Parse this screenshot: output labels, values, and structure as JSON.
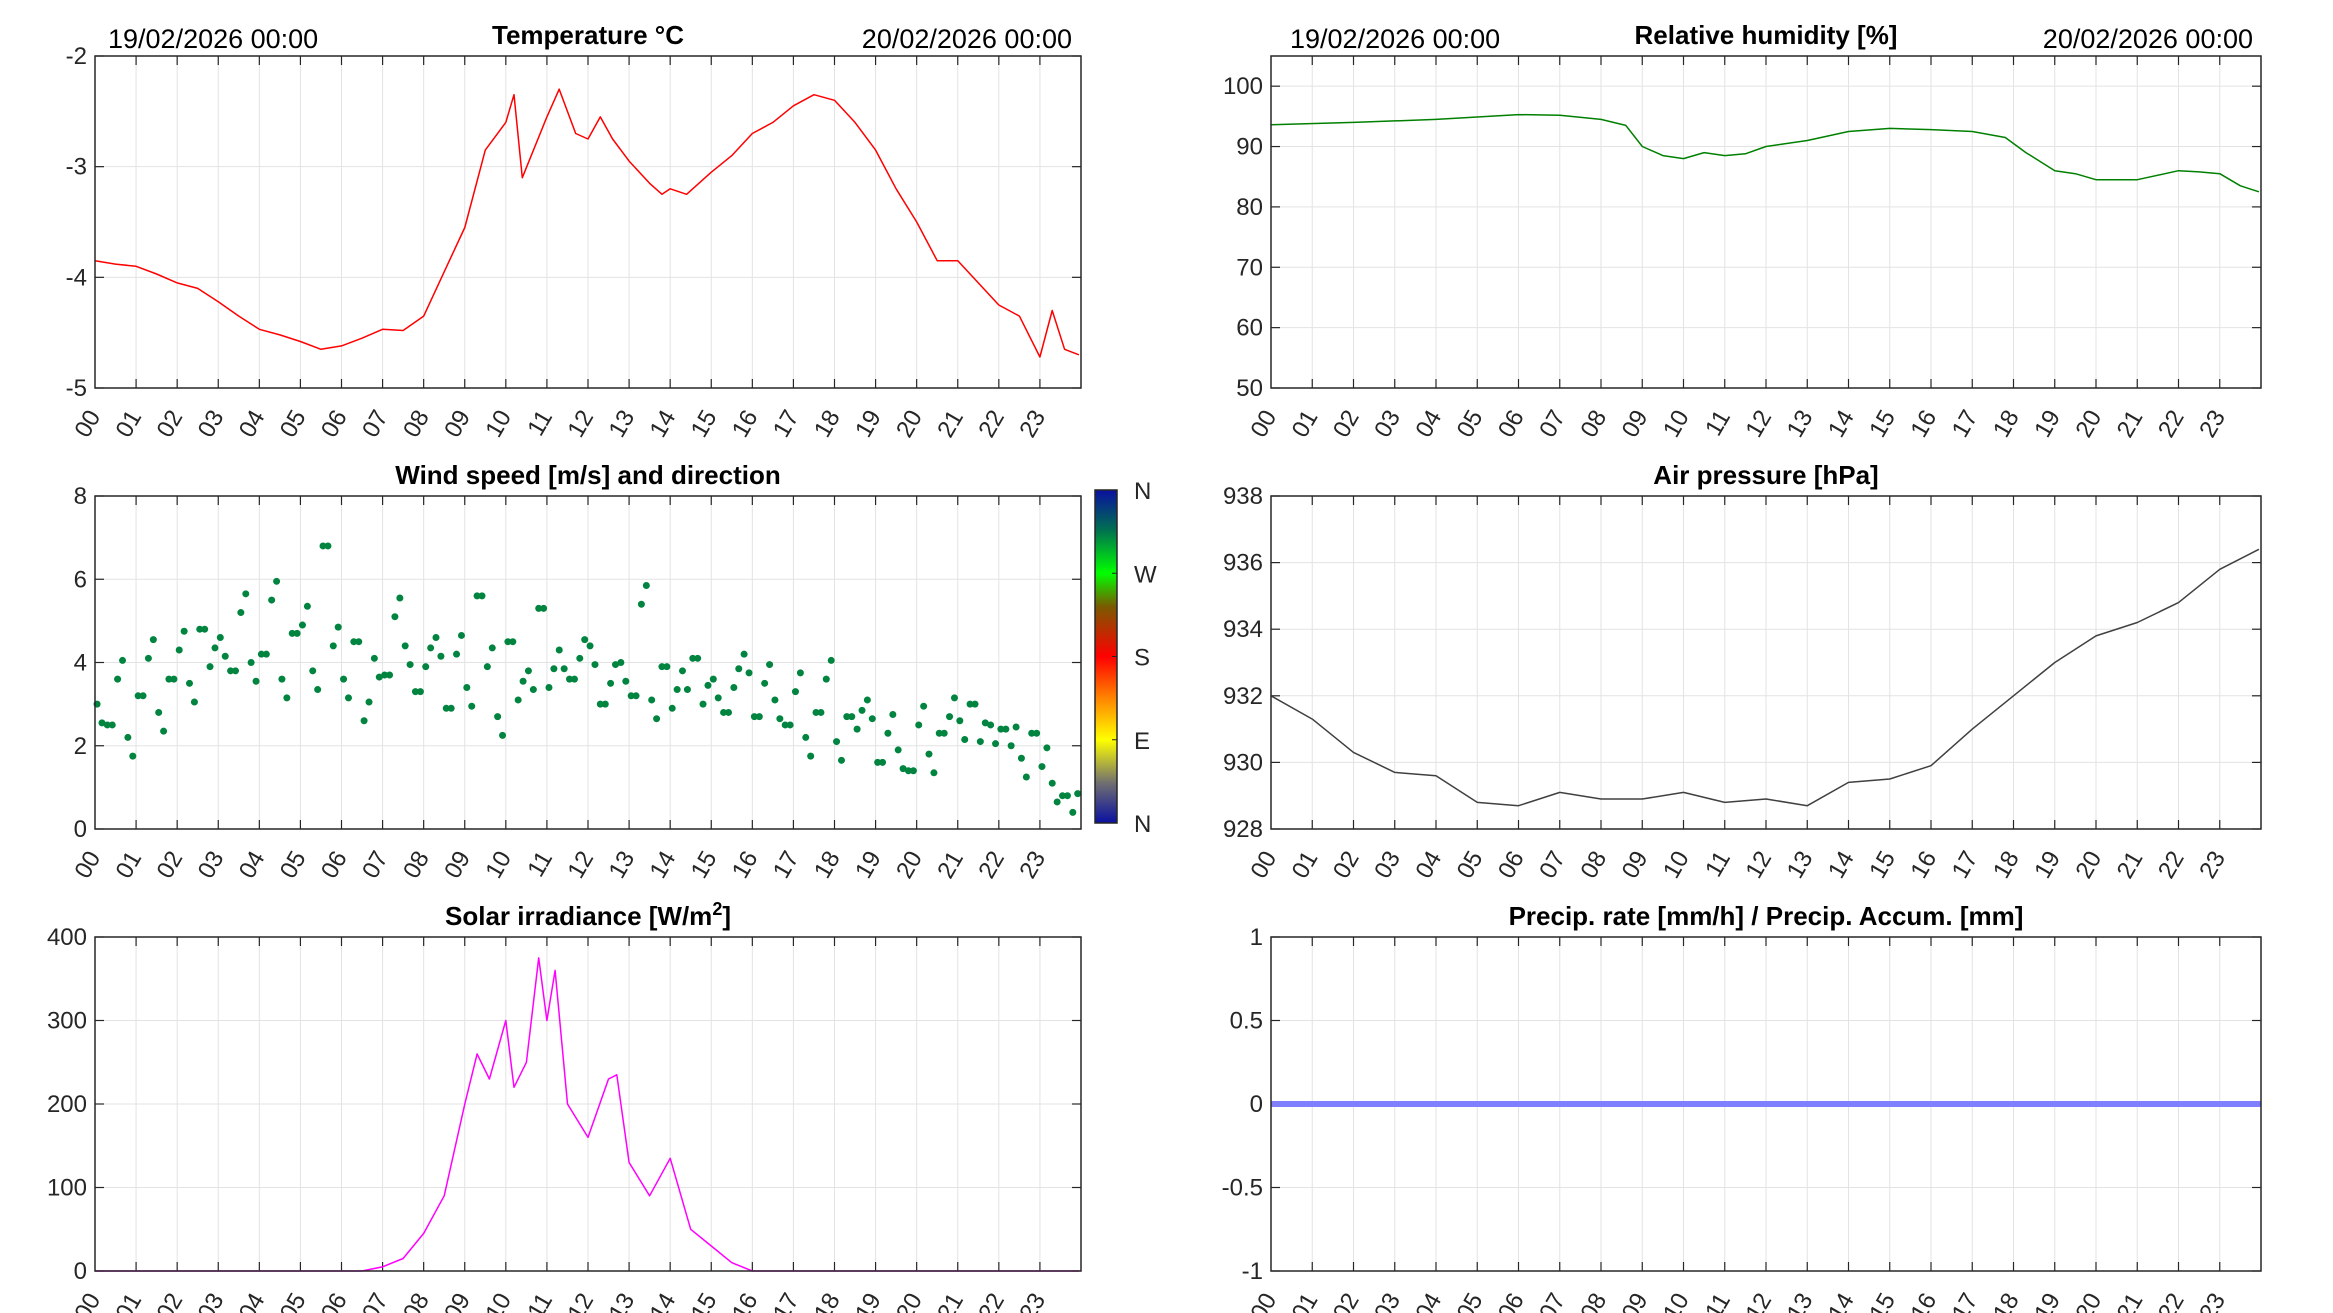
{
  "header": {
    "start_label": "19/02/2026 00:00",
    "end_label": "20/02/2026 00:00"
  },
  "hour_labels": [
    "00",
    "01",
    "02",
    "03",
    "04",
    "05",
    "06",
    "07",
    "08",
    "09",
    "10",
    "11",
    "12",
    "13",
    "14",
    "15",
    "16",
    "17",
    "18",
    "19",
    "20",
    "21",
    "22",
    "23"
  ],
  "chart_data": [
    {
      "id": "temperature",
      "type": "line",
      "title": "Temperature °C",
      "color": "#ff0000",
      "xlim": [
        0,
        24
      ],
      "ylim": [
        -5,
        -2
      ],
      "yticks": [
        -5,
        -4,
        -3,
        -2
      ],
      "ytick_labels": [
        "-5",
        "-4",
        "-3",
        "-2"
      ],
      "x": [
        0,
        0.5,
        1,
        1.5,
        2,
        2.5,
        3,
        3.5,
        4,
        4.5,
        5,
        5.5,
        6,
        6.5,
        7,
        7.5,
        8,
        8.5,
        9,
        9.5,
        10,
        10.2,
        10.4,
        11,
        11.3,
        11.7,
        12,
        12.3,
        12.6,
        13,
        13.5,
        13.8,
        14,
        14.4,
        15,
        15.5,
        16,
        16.5,
        17,
        17.5,
        18,
        18.5,
        19,
        19.5,
        20,
        20.5,
        21,
        21.5,
        22,
        22.5,
        23,
        23.3,
        23.6,
        23.95
      ],
      "y": [
        -3.85,
        -3.88,
        -3.9,
        -3.97,
        -4.05,
        -4.1,
        -4.22,
        -4.35,
        -4.47,
        -4.52,
        -4.58,
        -4.65,
        -4.62,
        -4.55,
        -4.47,
        -4.48,
        -4.35,
        -3.95,
        -3.55,
        -2.85,
        -2.6,
        -2.35,
        -3.1,
        -2.55,
        -2.3,
        -2.7,
        -2.75,
        -2.55,
        -2.75,
        -2.95,
        -3.15,
        -3.25,
        -3.2,
        -3.25,
        -3.05,
        -2.9,
        -2.7,
        -2.6,
        -2.45,
        -2.35,
        -2.4,
        -2.6,
        -2.85,
        -3.2,
        -3.5,
        -3.85,
        -3.85,
        -4.05,
        -4.25,
        -4.35,
        -4.72,
        -4.3,
        -4.65,
        -4.7
      ]
    },
    {
      "id": "humidity",
      "type": "line",
      "title": "Relative humidity [%]",
      "color": "#008000",
      "xlim": [
        0,
        24
      ],
      "ylim": [
        50,
        105
      ],
      "yticks": [
        50,
        60,
        70,
        80,
        90,
        100
      ],
      "ytick_labels": [
        "50",
        "60",
        "70",
        "80",
        "90",
        "100"
      ],
      "x": [
        0,
        2,
        4,
        6,
        7,
        8,
        8.6,
        9,
        9.5,
        10,
        10.5,
        11,
        11.5,
        12,
        13,
        14,
        15,
        16,
        17,
        17.8,
        18.3,
        19,
        19.5,
        20,
        21,
        22,
        22.5,
        23,
        23.5,
        23.95
      ],
      "y": [
        93.6,
        94,
        94.5,
        95.3,
        95.2,
        94.5,
        93.5,
        90,
        88.5,
        88,
        89,
        88.5,
        88.8,
        90,
        91,
        92.5,
        93,
        92.8,
        92.5,
        91.5,
        89,
        86,
        85.5,
        84.5,
        84.5,
        86,
        85.8,
        85.5,
        83.5,
        82.5
      ]
    },
    {
      "id": "wind",
      "type": "scatter",
      "title": "Wind speed [m/s] and direction",
      "color": "#00843f",
      "xlim": [
        0,
        24
      ],
      "ylim": [
        0,
        8
      ],
      "yticks": [
        0,
        2,
        4,
        6,
        8
      ],
      "ytick_labels": [
        "0",
        "2",
        "4",
        "6",
        "8"
      ],
      "colorbar_labels": [
        "N",
        "W",
        "S",
        "E",
        "N"
      ],
      "x_step_hours": 0.25,
      "y": [
        3.0,
        2.5,
        3.6,
        2.2,
        3.2,
        4.1,
        2.8,
        3.6,
        4.3,
        3.5,
        4.8,
        3.9,
        4.6,
        3.8,
        5.2,
        4.0,
        4.2,
        5.5,
        3.6,
        4.7,
        4.9,
        3.8,
        6.8,
        4.4,
        3.6,
        4.5,
        2.6,
        4.1,
        3.7,
        5.1,
        4.4,
        3.3,
        3.9,
        4.6,
        2.9,
        4.2,
        3.4,
        5.6,
        3.9,
        2.7,
        4.5,
        3.1,
        3.8,
        5.3,
        3.4,
        4.3,
        3.6,
        4.1,
        4.4,
        3.0,
        3.5,
        4.0,
        3.2,
        5.4,
        3.1,
        3.9,
        2.9,
        3.8,
        4.1,
        3.0,
        3.6,
        2.8,
        3.4,
        4.2,
        2.7,
        3.5,
        3.1,
        2.5,
        3.3,
        2.2,
        2.8,
        3.6,
        2.1,
        2.7,
        2.4,
        3.1,
        1.6,
        2.3,
        1.9,
        1.4,
        2.5,
        1.8,
        2.3,
        2.7,
        2.6,
        3.0,
        2.1,
        2.5,
        2.4,
        2.0,
        1.7,
        2.3,
        1.5,
        1.1,
        0.8,
        0.4
      ]
    },
    {
      "id": "pressure",
      "type": "line",
      "title": "Air pressure [hPa]",
      "color": "#404040",
      "xlim": [
        0,
        24
      ],
      "ylim": [
        928,
        938
      ],
      "yticks": [
        928,
        930,
        932,
        934,
        936,
        938
      ],
      "ytick_labels": [
        "928",
        "930",
        "932",
        "934",
        "936",
        "938"
      ],
      "x": [
        0,
        1,
        2,
        3,
        4,
        5,
        6,
        7,
        8,
        9,
        10,
        11,
        12,
        13,
        14,
        15,
        16,
        17,
        18,
        19,
        20,
        21,
        22,
        23,
        23.95
      ],
      "y": [
        932,
        931.3,
        930.3,
        929.7,
        929.6,
        928.8,
        928.7,
        929.1,
        928.9,
        928.9,
        929.1,
        928.8,
        928.9,
        928.7,
        929.4,
        929.5,
        929.9,
        931,
        932,
        933,
        933.8,
        934.2,
        934.8,
        935.8,
        936.4
      ]
    },
    {
      "id": "solar",
      "type": "line",
      "title": "Solar irradiance [W/m",
      "title_sup": "2",
      "title_end": "]",
      "color": "#ff00ff",
      "xlim": [
        0,
        24
      ],
      "ylim": [
        0,
        400
      ],
      "yticks": [
        0,
        100,
        200,
        300,
        400
      ],
      "ytick_labels": [
        "0",
        "100",
        "200",
        "300",
        "400"
      ],
      "x": [
        0,
        6.5,
        7,
        7.5,
        8,
        8.5,
        9,
        9.3,
        9.6,
        10,
        10.2,
        10.5,
        10.8,
        11,
        11.2,
        11.5,
        12,
        12.5,
        12.7,
        13,
        13.5,
        14,
        14.5,
        15,
        15.5,
        16,
        23.95
      ],
      "y": [
        0,
        0,
        5,
        15,
        45,
        90,
        200,
        260,
        230,
        300,
        220,
        250,
        375,
        300,
        360,
        200,
        160,
        230,
        235,
        130,
        90,
        135,
        50,
        30,
        10,
        0,
        0
      ]
    },
    {
      "id": "precip",
      "type": "line",
      "title": "Precip. rate [mm/h] / Precip. Accum. [mm]",
      "color": "#8080ff",
      "xlim": [
        0,
        24
      ],
      "ylim": [
        -1,
        1
      ],
      "yticks": [
        -1,
        -0.5,
        0,
        0.5,
        1
      ],
      "ytick_labels": [
        "-1",
        "-0.5",
        "0",
        "0.5",
        "1"
      ],
      "x": [
        0,
        24
      ],
      "y": [
        0,
        0
      ]
    }
  ]
}
